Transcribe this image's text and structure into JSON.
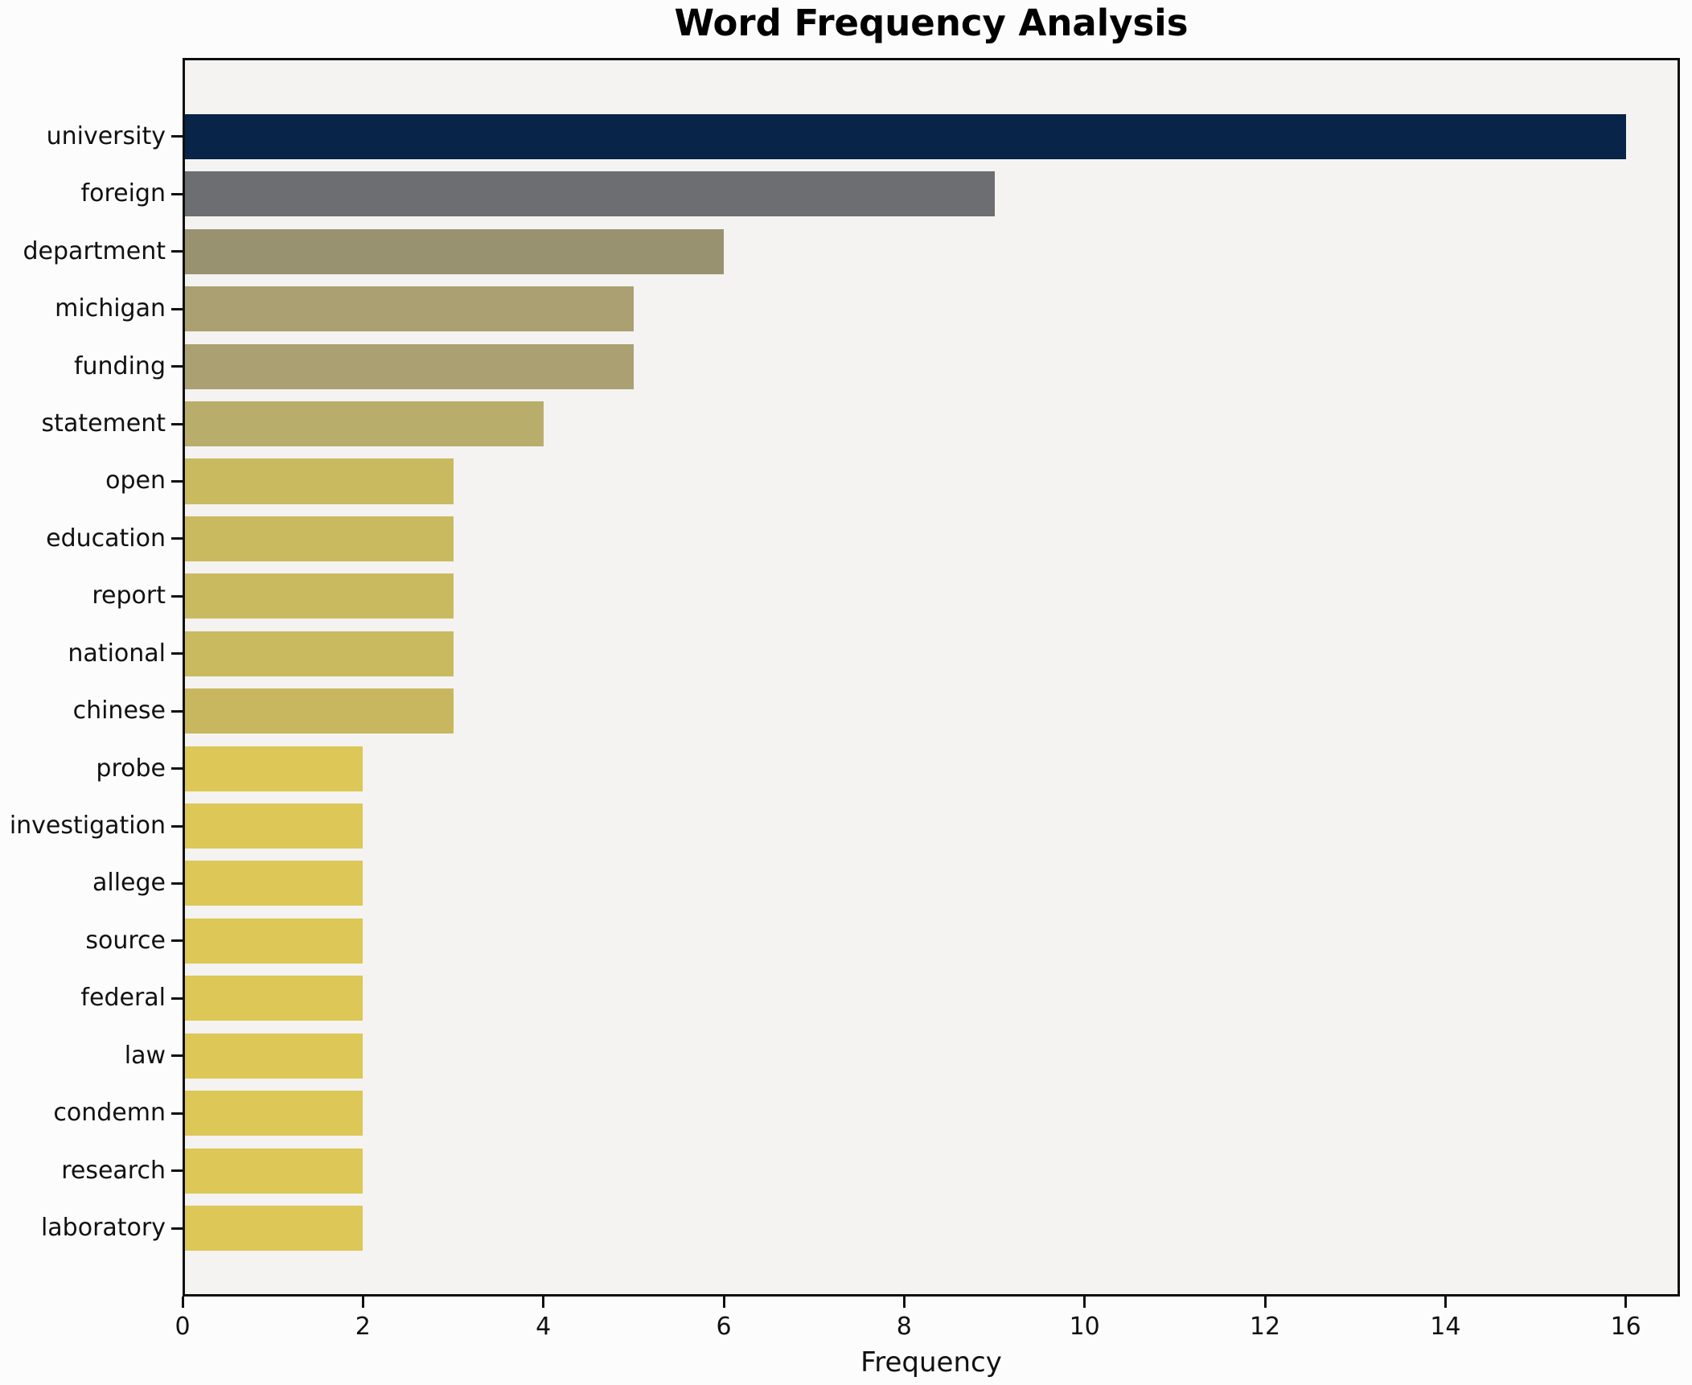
{
  "chart_data": {
    "type": "bar",
    "orientation": "horizontal",
    "title": "Word Frequency Analysis",
    "xlabel": "Frequency",
    "ylabel": "",
    "categories": [
      "university",
      "foreign",
      "department",
      "michigan",
      "funding",
      "statement",
      "open",
      "education",
      "report",
      "national",
      "chinese",
      "probe",
      "investigation",
      "allege",
      "source",
      "federal",
      "law",
      "condemn",
      "research",
      "laboratory"
    ],
    "values": [
      16,
      9,
      6,
      5,
      5,
      4,
      3,
      3,
      3,
      3,
      3,
      2,
      2,
      2,
      2,
      2,
      2,
      2,
      2,
      2
    ],
    "bar_colors": [
      "#082448",
      "#6c6e71",
      "#999270",
      "#aaa071",
      "#aaa071",
      "#b9ad6c",
      "#c9ba60",
      "#c9ba60",
      "#c9ba60",
      "#c9ba60",
      "#c8b75e",
      "#dcc757",
      "#dcc757",
      "#dcc757",
      "#dcc757",
      "#dcc757",
      "#dcc757",
      "#dcc757",
      "#dcc757",
      "#dcc757"
    ],
    "xlim": [
      0,
      16.6
    ],
    "xticks": [
      0,
      2,
      4,
      6,
      8,
      10,
      12,
      14,
      16
    ],
    "grid": false,
    "legend_position": "none"
  },
  "colors": {
    "figure_background": "#fcfcfc",
    "axes_background": "#f4f3f1",
    "spine": "#0f0f0f",
    "text": "#111111"
  }
}
